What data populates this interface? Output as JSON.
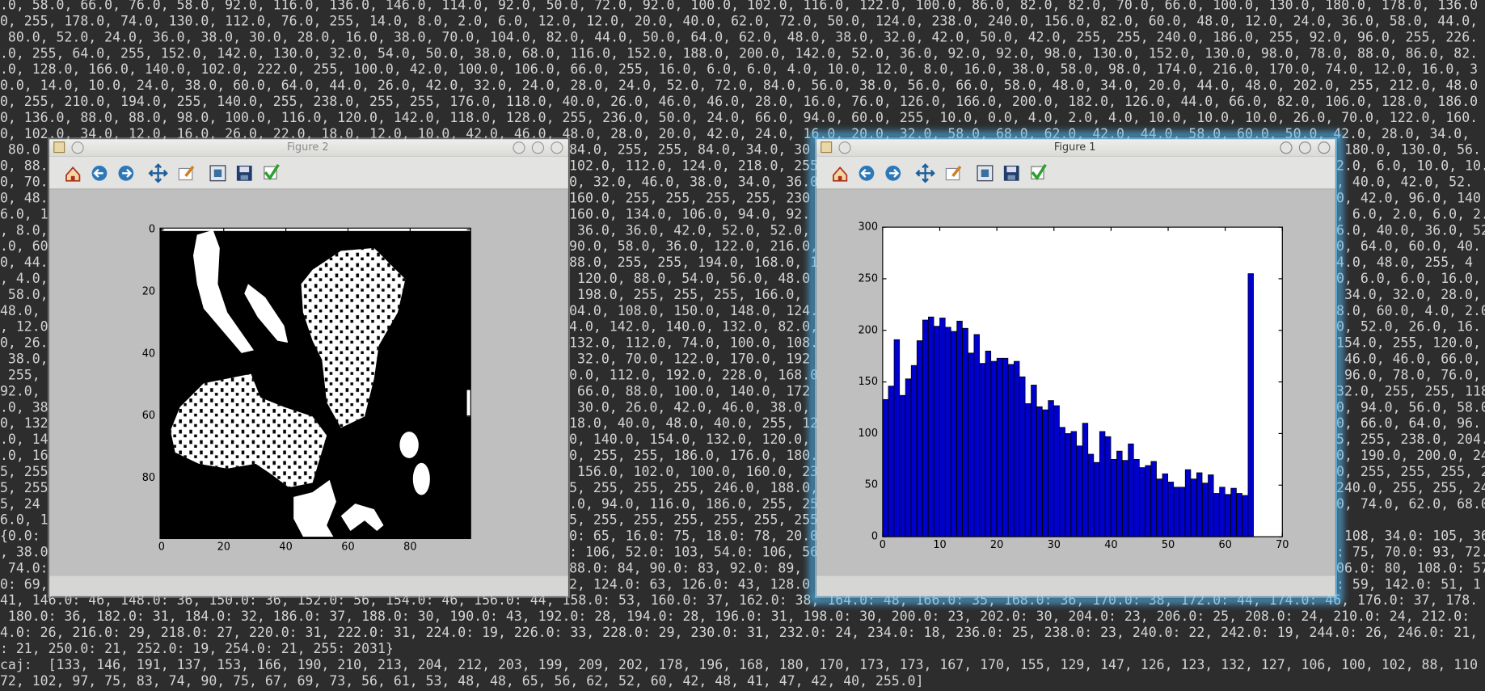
{
  "terminal": {
    "top_rows": [
      ".0, 58.0, 66.0, 76.0, 58.0, 92.0, 116.0, 136.0, 146.0, 114.0, 92.0, 50.0, 72.0, 92.0, 100.0, 102.0, 116.0, 122.0, 100.0, 86.0, 82.0, 82.0, 70.0, 66.0, 100.0, 130.0, 180.0, 178.0, 136.0",
      "0, 255, 178.0, 74.0, 130.0, 112.0, 76.0, 255, 14.0, 8.0, 2.0, 6.0, 12.0, 12.0, 20.0, 40.0, 62.0, 72.0, 50.0, 124.0, 238.0, 240.0, 156.0, 82.0, 60.0, 48.0, 12.0, 24.0, 36.0, 58.0, 44.0,",
      " 80.0, 52.0, 24.0, 36.0, 38.0, 30.0, 28.0, 16.0, 38.0, 70.0, 104.0, 82.0, 44.0, 50.0, 64.0, 62.0, 48.0, 38.0, 32.0, 42.0, 50.0, 42.0, 255, 255, 240.0, 186.0, 255, 92.0, 96.0, 255, 226.",
      ".0, 255, 64.0, 255, 152.0, 142.0, 130.0, 32.0, 54.0, 50.0, 38.0, 68.0, 116.0, 152.0, 188.0, 200.0, 142.0, 52.0, 36.0, 92.0, 92.0, 98.0, 130.0, 152.0, 130.0, 98.0, 78.0, 88.0, 86.0, 82.",
      ".0, 128.0, 166.0, 140.0, 102.0, 222.0, 255, 100.0, 42.0, 100.0, 106.0, 66.0, 255, 16.0, 6.0, 6.0, 4.0, 10.0, 12.0, 8.0, 16.0, 38.0, 58.0, 98.0, 174.0, 216.0, 170.0, 74.0, 12.0, 16.0, 3",
      "0.0, 14.0, 10.0, 24.0, 38.0, 60.0, 64.0, 44.0, 26.0, 42.0, 32.0, 24.0, 28.0, 24.0, 52.0, 72.0, 84.0, 56.0, 38.0, 56.0, 66.0, 58.0, 48.0, 34.0, 20.0, 44.0, 48.0, 202.0, 255, 212.0, 48.0",
      "0, 255, 210.0, 194.0, 255, 140.0, 255, 238.0, 255, 255, 176.0, 118.0, 40.0, 26.0, 46.0, 46.0, 28.0, 16.0, 76.0, 126.0, 166.0, 200.0, 182.0, 126.0, 44.0, 66.0, 82.0, 106.0, 128.0, 186.0",
      "0, 136.0, 88.0, 88.0, 98.0, 100.0, 116.0, 120.0, 142.0, 118.0, 128.0, 255, 236.0, 50.0, 24.0, 66.0, 94.0, 60.0, 255, 10.0, 0.0, 4.0, 2.0, 4.0, 10.0, 10.0, 10.0, 26.0, 70.0, 122.0, 160.",
      "0, 102.0, 34.0, 12.0, 16.0, 26.0, 22.0, 18.0, 12.0, 10.0, 42.0, 46.0, 48.0, 28.0, 20.0, 42.0, 24.0, 16.0, 20.0, 32.0, 58.0, 68.0, 62.0, 42.0, 44.0, 58.0, 60.0, 50.0, 42.0, 28.0, 34.0,"
    ],
    "left_column": [
      " 80.0",
      "0, 88.",
      "0, 70.",
      "0, 48.",
      "6.0, 1",
      ", 8.0,",
      ".0, 60",
      "0, 44.",
      ", 4.0,",
      " 58.0,",
      "48.0,",
      ", 12.0",
      "0, 26.",
      " 38.0,",
      " 255,",
      "92.0,",
      ".0, 38",
      "0, 132",
      ".0, 14",
      ".0, 16",
      "5, 255",
      "5, 255",
      "5, 24",
      "6.0, 1",
      "{0.0:",
      ", 38.0",
      " 74.0:",
      "0: 69,"
    ],
    "middle_column": [
      "84.0, 255, 255, 84.0, 34.0, 30",
      "102.0, 112.0, 124.0, 218.0, 255",
      "0, 32.0, 46.0, 38.0, 34.0, 36.0",
      "160.0, 255, 255, 255, 255, 230",
      "160.0, 134.0, 106.0, 94.0, 92.",
      " 36.0, 36.0, 42.0, 52.0, 52.0,",
      "90.0, 58.0, 36.0, 122.0, 216.0,",
      "88.0, 255, 255, 194.0, 168.0, 1",
      " 120.0, 88.0, 54.0, 56.0, 48.0",
      " 198.0, 255, 255, 255, 166.0,",
      "04.0, 108.0, 150.0, 148.0, 124.",
      "4.0, 142.0, 140.0, 132.0, 82.0,",
      "132.0, 112.0, 74.0, 100.0, 108.",
      " 32.0, 70.0, 122.0, 170.0, 192",
      "0.0, 112.0, 192.0, 228.0, 168.0",
      " 66.0, 88.0, 100.0, 140.0, 172",
      " 30.0, 26.0, 42.0, 46.0, 38.0,",
      "18.0, 40.0, 48.0, 40.0, 255, 12",
      "0, 140.0, 154.0, 132.0, 120.0,",
      "0, 255, 255, 186.0, 176.0, 180.",
      " 156.0, 102.0, 100.0, 160.0, 23",
      "5, 255, 255, 255, 246.0, 188.0,",
      ".0, 94.0, 116.0, 186.0, 255, 25",
      "5, 255, 255, 255, 255, 255, 255",
      "0: 65, 16.0: 75, 18.0: 78, 20.0",
      ": 106, 52.0: 103, 54.0: 106, 56",
      "88.0: 84, 90.0: 83, 92.0: 89,",
      "2, 124.0: 63, 126.0: 43, 128.0"
    ],
    "right_column": [
      " 180.0, 130.0, 56.",
      "2.0, 6.0, 10.0, 10.",
      ", 40.0, 42.0, 52.",
      "0, 42.0, 96.0, 140",
      ", 6.0, 2.0, 6.0, 2.",
      "6.0, 40.0, 36.0, 52",
      "0, 64.0, 60.0, 40.",
      "4.0, 48.0, 255, 4",
      "0, 6.0, 6.0, 16.0,",
      " 34.0, 32.0, 28.0,",
      "8.0, 60.0, 4.0, 2.0",
      "0, 52.0, 26.0, 16.",
      "154.0, 255, 120.0,",
      " 46.0, 46.0, 66.0,",
      " 96.0, 78.0, 76.0,",
      "32.0, 255, 255, 118",
      "0, 94.0, 56.0, 58.0",
      "0, 66.0, 64.0, 96.",
      "5, 255, 238.0, 204.",
      "0, 190.0, 200.0, 24",
      "0, 255, 255, 255, 2",
      "240.0, 255, 255, 24",
      "0, 74.0, 62.0, 68.0, 6",
      null,
      " 108, 34.0: 105, 36",
      ": 75, 70.0: 93, 72.",
      "06.0: 80, 108.0: 57",
      ": 59, 142.0: 51, 1"
    ],
    "bottom_rows": [
      "41, 146.0: 46, 148.0: 36, 150.0: 36, 152.0: 56, 154.0: 46, 156.0: 44, 158.0: 53, 160.0: 37, 162.0: 38, 164.0: 48, 166.0: 35, 168.0: 36, 170.0: 38, 172.0: 44, 174.0: 46, 176.0: 37, 178.",
      " 180.0: 36, 182.0: 31, 184.0: 32, 186.0: 37, 188.0: 30, 190.0: 43, 192.0: 28, 194.0: 28, 196.0: 31, 198.0: 30, 200.0: 23, 202.0: 30, 204.0: 23, 206.0: 25, 208.0: 24, 210.0: 24, 212.0:",
      "4.0: 26, 216.0: 29, 218.0: 27, 220.0: 31, 222.0: 31, 224.0: 19, 226.0: 33, 228.0: 29, 230.0: 31, 232.0: 24, 234.0: 18, 236.0: 25, 238.0: 23, 240.0: 22, 242.0: 19, 244.0: 26, 246.0: 21,",
      ": 21, 250.0: 21, 252.0: 19, 254.0: 21, 255: 2031}",
      "caj:  [133, 146, 191, 137, 153, 166, 190, 210, 213, 204, 212, 203, 199, 209, 202, 178, 196, 168, 180, 170, 173, 173, 167, 170, 155, 129, 147, 126, 123, 132, 127, 106, 100, 102, 88, 110",
      "72, 102, 97, 75, 83, 74, 90, 75, 67, 69, 73, 56, 61, 53, 48, 48, 65, 56, 62, 52, 60, 42, 48, 41, 47, 42, 40, 255.0]"
    ]
  },
  "windows": [
    {
      "title": "Figure 2",
      "chart_data": {
        "type": "image",
        "xlim": [
          -0.5,
          99.5
        ],
        "ylim": [
          99.5,
          -0.5
        ],
        "xticks": [
          0,
          20,
          40,
          60,
          80
        ],
        "yticks": [
          0,
          20,
          40,
          60,
          80
        ]
      }
    },
    {
      "title": "Figure 1",
      "chart_data": {
        "type": "bar",
        "color": "#0000cc",
        "values": [
          133,
          146,
          191,
          137,
          153,
          166,
          190,
          210,
          213,
          204,
          212,
          203,
          199,
          209,
          202,
          178,
          196,
          168,
          180,
          170,
          173,
          173,
          167,
          170,
          155,
          129,
          147,
          126,
          123,
          132,
          127,
          106,
          100,
          102,
          88,
          110,
          80,
          72,
          102,
          97,
          75,
          83,
          74,
          90,
          75,
          67,
          69,
          73,
          56,
          61,
          53,
          48,
          48,
          65,
          56,
          62,
          52,
          60,
          42,
          48,
          41,
          47,
          42,
          40,
          255
        ],
        "xlim": [
          0,
          70
        ],
        "xticks": [
          0,
          10,
          20,
          30,
          40,
          50,
          60,
          70
        ],
        "ylim": [
          0,
          300
        ],
        "yticks": [
          0,
          50,
          100,
          150,
          200,
          250,
          300
        ]
      }
    }
  ]
}
